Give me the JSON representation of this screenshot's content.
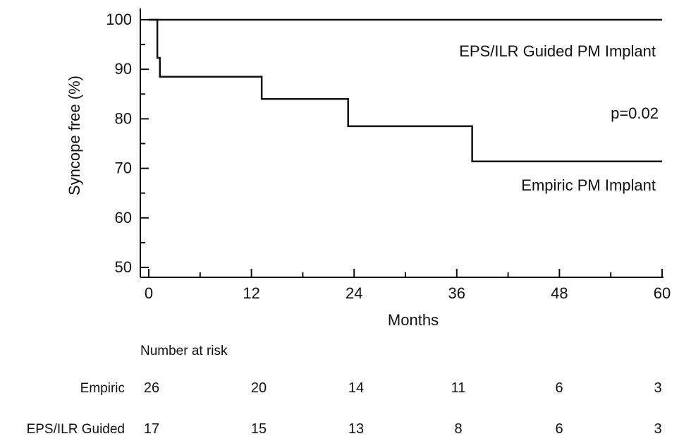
{
  "chart_data": {
    "type": "line",
    "step": true,
    "xlabel": "Months",
    "ylabel": "Syncope free (%)",
    "xlim": [
      0,
      60
    ],
    "ylim": [
      48,
      100
    ],
    "xticks": [
      0,
      12,
      24,
      36,
      48,
      60
    ],
    "yticks": [
      50,
      60,
      70,
      80,
      90,
      100
    ],
    "series": [
      {
        "name": "EPS/ILR Guided PM Implant",
        "x": [
          0,
          60
        ],
        "y": [
          100,
          100
        ]
      },
      {
        "name": "Empiric PM Implant",
        "x": [
          0,
          1.0,
          1.3,
          13.2,
          23.3,
          37.8,
          60
        ],
        "y": [
          100,
          92.3,
          88.5,
          84.0,
          78.5,
          71.4,
          71.4
        ]
      }
    ],
    "annotations": [
      {
        "text": "p=0.02"
      }
    ]
  },
  "risk_table": {
    "title": "Number at risk",
    "rows": [
      {
        "label": "Empiric",
        "values": [
          "26",
          "20",
          "14",
          "11",
          "6",
          "3"
        ]
      },
      {
        "label": "EPS/ILR Guided",
        "values": [
          "17",
          "15",
          "13",
          "8",
          "6",
          "3"
        ]
      }
    ]
  }
}
